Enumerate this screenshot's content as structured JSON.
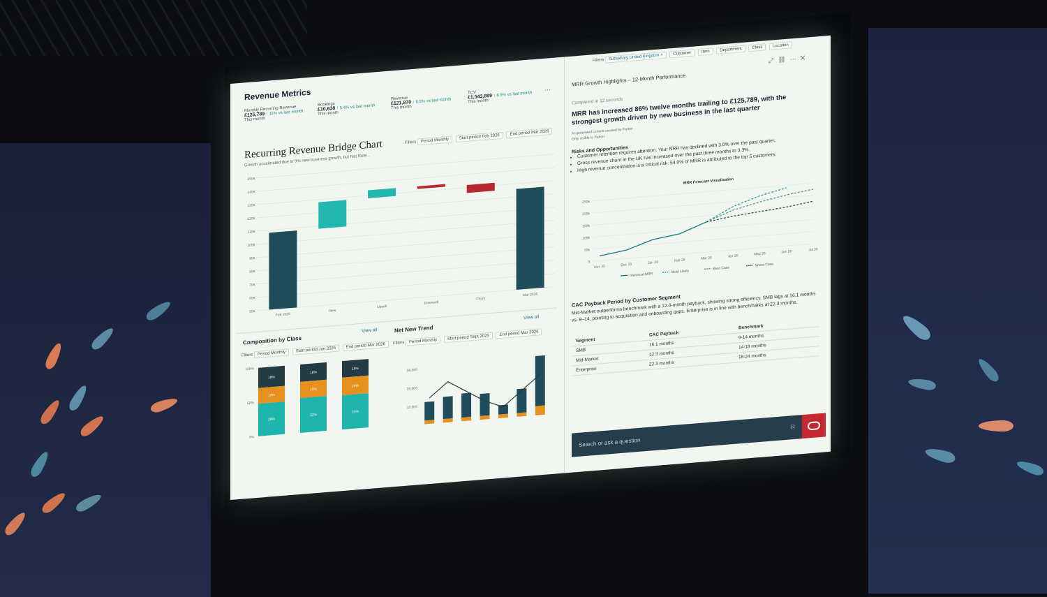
{
  "revenue_metrics": {
    "title": "Revenue Metrics",
    "cards": [
      {
        "label": "Monthly Recurring Revenue",
        "value": "£125,789",
        "change": "↑ 11% vs last month",
        "period": "This month"
      },
      {
        "label": "Bookings",
        "value": "£10,638",
        "change": "↑ 5.4% vs last month",
        "period": "This month"
      },
      {
        "label": "Revenue",
        "value": "£121,870",
        "change": "↑ 6.5% vs last month",
        "period": "This month"
      },
      {
        "label": "TCV",
        "value": "£1,543,899",
        "change": "↑ 8.9% vs last month",
        "period": "This month"
      }
    ],
    "more": "···"
  },
  "bridge_chart": {
    "title": "Recurring Revenue Bridge Chart",
    "subtitle": "Growth accelerated due to 9% new business growth, but Net Rete...",
    "filters_label": "Filters",
    "filters": [
      "Period Monthly",
      "Start period Feb 2026",
      "End period Mar 2026"
    ]
  },
  "composition": {
    "title": "Composition by Class",
    "view_all": "View all",
    "filters_label": "Filters",
    "filters": [
      "Period Monthly",
      "Start period Jan 2026",
      "End period Mar 2026"
    ]
  },
  "net_new_trend": {
    "title": "Net New Trend",
    "view_all": "View all",
    "filters_label": "Filters",
    "filters": [
      "Period Monthly",
      "Start period Sept 2025",
      "End period Mar 2026"
    ]
  },
  "filter_bar": {
    "label": "Filters",
    "active": "Subsidiary United Kingdom",
    "remove": "×",
    "options": [
      "Customer",
      "Item",
      "Department",
      "Class",
      "Location"
    ]
  },
  "insights": {
    "title": "MRR Growth Highlights – 12-Month Performance",
    "completed": "Completed in 12 seconds",
    "headline": "MRR has increased 86% twelve months trailing to £125,789, with the strongest growth driven by new business in the last quarter",
    "ai_note": "AI-generated content created by Parker",
    "visibility": "Only visible to Parker",
    "risks_title": "Risks and Opportunities",
    "risks": [
      "Customer retention requires attention. Your NRR has declined with 3.0% over the past quarter.",
      "Gross revenue churn in the UK  has increased over the past three months to 3.3%.",
      "High revenue concentration is a critical risk. 54.0% of MRR is attributed to the top 5 customers."
    ],
    "cac_title": "CAC Payback Period by Customer Segment",
    "cac_text": "Mid-Market outperforms benchmark with a 12.3-month payback, showing strong efficiency. SMB lags at 16.1 months vs. 9–14, pointing to acquisition and onboarding gaps. Enterprise is in line with benchmarks at 22.3 months.",
    "table": {
      "headers": [
        "Segment",
        "CAC Payback",
        "Benchmark"
      ],
      "rows": [
        [
          "SMB",
          "16.1 months",
          "9-14 months"
        ],
        [
          "Mid-Market",
          "12.3 months",
          "14-18 months"
        ],
        [
          "Enterprise",
          "22.3 months",
          "18-24 months"
        ]
      ]
    },
    "search_placeholder": "Search or ask a question"
  },
  "chart_data": [
    {
      "type": "bar",
      "title": "Recurring Revenue Bridge Chart",
      "categories": [
        "Feb 2026",
        "New",
        "Upsell",
        "Downsell",
        "Churn",
        "Mar 2026"
      ],
      "y_ticks": [
        "50K",
        "60K",
        "70K",
        "80K",
        "90K",
        "100K",
        "110K",
        "120K",
        "130K",
        "140K",
        "150K"
      ],
      "bars": [
        {
          "category": "Feb 2026",
          "from": 50,
          "to": 108,
          "kind": "total"
        },
        {
          "category": "New",
          "from": 108,
          "to": 128,
          "kind": "increase"
        },
        {
          "category": "Upsell",
          "from": 128,
          "to": 134,
          "kind": "increase"
        },
        {
          "category": "Downsell",
          "from": 134,
          "to": 132,
          "kind": "decrease"
        },
        {
          "category": "Churn",
          "from": 132,
          "to": 126,
          "kind": "decrease"
        },
        {
          "category": "Mar 2026",
          "from": 50,
          "to": 126,
          "kind": "total"
        }
      ],
      "ylim": [
        50,
        150
      ],
      "colors": {
        "total": "#1f4d5c",
        "increase": "#22b8b0",
        "decrease": "#b8262e"
      }
    },
    {
      "type": "line",
      "title": "MRR Forecast Visualisation",
      "categories": [
        "Nov 25",
        "Dec 25",
        "Jan 26",
        "Feb 26",
        "Mar 26",
        "Apr 26",
        "May 26",
        "Jun 26",
        "Jul 26"
      ],
      "y_ticks": [
        "0",
        "50k",
        "100k",
        "150k",
        "200k",
        "250k"
      ],
      "ylim": [
        0,
        260
      ],
      "series": [
        {
          "name": "Historical MRR",
          "values": [
            20,
            35,
            70,
            85,
            125,
            null,
            null,
            null,
            null
          ],
          "color": "#1f7f80"
        },
        {
          "name": "Most Likely",
          "values": [
            null,
            null,
            null,
            null,
            125,
            180,
            215,
            240,
            null
          ],
          "color": "#2aa39c"
        },
        {
          "name": "Best Case",
          "values": [
            null,
            null,
            null,
            null,
            125,
            165,
            190,
            210,
            225
          ],
          "color": "#5a9e8f"
        },
        {
          "name": "Worst Case",
          "values": [
            null,
            null,
            null,
            null,
            125,
            140,
            150,
            160,
            175
          ],
          "color": "#3b5a4d"
        }
      ]
    },
    {
      "type": "bar",
      "title": "Composition by Class",
      "y_ticks": [
        "100%",
        "50%",
        "0%"
      ],
      "stacks": [
        [
          {
            "label": "18%",
            "value": 18,
            "color": "#243b44"
          },
          {
            "label": "14%",
            "value": 14,
            "color": "#e6901e"
          },
          {
            "label": "29%",
            "value": 29,
            "color": "#1fb5ad"
          }
        ],
        [
          {
            "label": "16%",
            "value": 16,
            "color": "#243b44"
          },
          {
            "label": "15%",
            "value": 15,
            "color": "#e6901e"
          },
          {
            "label": "32%",
            "value": 32,
            "color": "#1fb5ad"
          }
        ],
        [
          {
            "label": "15%",
            "value": 15,
            "color": "#243b44"
          },
          {
            "label": "16%",
            "value": 16,
            "color": "#e6901e"
          },
          {
            "label": "31%",
            "value": 31,
            "color": "#1fb5ad"
          }
        ]
      ]
    },
    {
      "type": "bar",
      "title": "Net New Trend",
      "y_ticks": [
        "30,000",
        "20,000",
        "10,000"
      ],
      "ylim": [
        0,
        40000
      ],
      "bars": [
        {
          "main": 10000,
          "base": 2000
        },
        {
          "main": 12000,
          "base": 2000
        },
        {
          "main": 13000,
          "base": 2000
        },
        {
          "main": 12000,
          "base": 2000
        },
        {
          "main": 5000,
          "base": 2000
        },
        {
          "main": 13000,
          "base": 2000
        },
        {
          "main": 27000,
          "base": 5000
        }
      ],
      "line": [
        14000,
        22000,
        16000,
        10000,
        6000,
        14000,
        22000
      ],
      "colors": {
        "main": "#1f4d5c",
        "base": "#e6901e",
        "line": "#2a3d3d"
      }
    }
  ]
}
